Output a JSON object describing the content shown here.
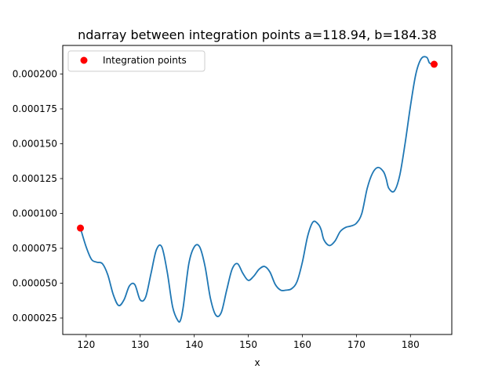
{
  "chart_data": {
    "type": "line",
    "title": "ndarray between integration points a=118.94, b=184.38",
    "xlabel": "x",
    "ylabel": "",
    "xlim": [
      115.67,
      187.65
    ],
    "ylim": [
      1.32e-05,
      0.0002205
    ],
    "x_ticks": [
      120,
      130,
      140,
      150,
      160,
      170,
      180
    ],
    "x_tick_labels": [
      "120",
      "130",
      "140",
      "150",
      "160",
      "170",
      "180"
    ],
    "y_ticks": [
      2.5e-05,
      5e-05,
      7.5e-05,
      0.0001,
      0.000125,
      0.00015,
      0.000175,
      0.0002
    ],
    "y_tick_labels": [
      "0.000025",
      "0.000050",
      "0.000075",
      "0.000100",
      "0.000125",
      "0.000150",
      "0.000175",
      "0.000200"
    ],
    "grid": false,
    "legend_position": "upper-left",
    "series": [
      {
        "kind": "line",
        "color": "#1f77b4",
        "x": [
          118.94,
          120.0,
          121.0,
          122.0,
          123.0,
          124.0,
          125.0,
          126.0,
          127.0,
          128.0,
          129.0,
          130.0,
          131.0,
          132.0,
          133.0,
          134.0,
          135.0,
          136.0,
          137.0,
          137.5,
          138.0,
          139.0,
          140.0,
          141.0,
          142.0,
          143.0,
          144.0,
          145.0,
          146.0,
          147.0,
          148.0,
          149.0,
          150.0,
          151.0,
          152.0,
          153.0,
          154.0,
          155.0,
          156.0,
          157.0,
          158.0,
          159.0,
          160.0,
          161.0,
          162.0,
          163.0,
          163.5,
          164.0,
          165.0,
          166.0,
          167.0,
          168.0,
          169.0,
          170.0,
          171.0,
          172.0,
          173.0,
          174.0,
          175.0,
          175.5,
          176.0,
          177.0,
          178.0,
          179.0,
          180.0,
          181.0,
          182.0,
          183.0,
          183.5,
          184.0,
          184.38
        ],
        "y": [
          8.95e-05,
          7.6e-05,
          6.7e-05,
          6.5e-05,
          6.4e-05,
          5.6e-05,
          4.2e-05,
          3.4e-05,
          3.8e-05,
          4.8e-05,
          4.9e-05,
          3.8e-05,
          4e-05,
          5.7e-05,
          7.4e-05,
          7.6e-05,
          5.8e-05,
          3.3e-05,
          2.3e-05,
          2.4e-05,
          3.4e-05,
          6.4e-05,
          7.6e-05,
          7.6e-05,
          6.2e-05,
          3.9e-05,
          2.7e-05,
          2.9e-05,
          4.5e-05,
          6e-05,
          6.4e-05,
          5.7e-05,
          5.2e-05,
          5.5e-05,
          6e-05,
          6.2e-05,
          5.8e-05,
          4.9e-05,
          4.5e-05,
          4.5e-05,
          4.6e-05,
          5.1e-05,
          6.5e-05,
          8.4e-05,
          9.4e-05,
          9.2e-05,
          8.8e-05,
          8.1e-05,
          7.7e-05,
          8e-05,
          8.7e-05,
          9e-05,
          9.1e-05,
          9.3e-05,
          0.0001,
          0.000118,
          0.000129,
          0.000133,
          0.00013,
          0.000125,
          0.000118,
          0.000116,
          0.000127,
          0.00015,
          0.000177,
          0.0002,
          0.000211,
          0.000212,
          0.000208,
          0.000207,
          0.000207
        ]
      },
      {
        "kind": "scatter",
        "name": "Integration points",
        "color": "#ff0000",
        "x": [
          118.94,
          184.38
        ],
        "y": [
          8.95e-05,
          0.000207
        ]
      }
    ]
  }
}
